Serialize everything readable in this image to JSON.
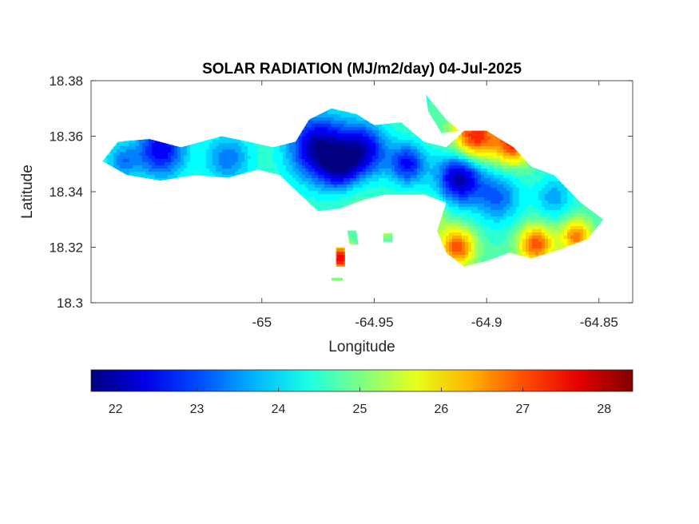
{
  "title": "SOLAR RADIATION (MJ/m2/day) 04-Jul-2025",
  "map": {
    "xlabel": "Longitude",
    "ylabel": "Latitude",
    "xlim": [
      -65.076,
      -64.835
    ],
    "ylim": [
      18.3,
      18.38
    ],
    "xticks": [
      {
        "value": -65,
        "label": "-65"
      },
      {
        "value": -64.95,
        "label": "-64.95"
      },
      {
        "value": -64.9,
        "label": "-64.9"
      },
      {
        "value": -64.85,
        "label": "-64.85"
      }
    ],
    "yticks": [
      {
        "value": 18.38,
        "label": "18.38"
      },
      {
        "value": 18.36,
        "label": "18.36"
      },
      {
        "value": 18.34,
        "label": "18.34"
      },
      {
        "value": 18.32,
        "label": "18.32"
      },
      {
        "value": 18.3,
        "label": "18.3"
      }
    ],
    "island_outline": [
      [
        -65.071,
        18.351
      ],
      [
        -65.064,
        18.358
      ],
      [
        -65.05,
        18.359
      ],
      [
        -65.036,
        18.356
      ],
      [
        -65.018,
        18.36
      ],
      [
        -65.006,
        18.358
      ],
      [
        -64.995,
        18.356
      ],
      [
        -64.985,
        18.358
      ],
      [
        -64.979,
        18.366
      ],
      [
        -64.969,
        18.37
      ],
      [
        -64.958,
        18.368
      ],
      [
        -64.95,
        18.364
      ],
      [
        -64.938,
        18.365
      ],
      [
        -64.928,
        18.358
      ],
      [
        -64.918,
        18.356
      ],
      [
        -64.91,
        18.362
      ],
      [
        -64.9,
        18.362
      ],
      [
        -64.888,
        18.356
      ],
      [
        -64.88,
        18.349
      ],
      [
        -64.87,
        18.346
      ],
      [
        -64.858,
        18.336
      ],
      [
        -64.848,
        18.33
      ],
      [
        -64.855,
        18.323
      ],
      [
        -64.868,
        18.319
      ],
      [
        -64.88,
        18.316
      ],
      [
        -64.89,
        18.318
      ],
      [
        -64.9,
        18.315
      ],
      [
        -64.91,
        18.313
      ],
      [
        -64.918,
        18.318
      ],
      [
        -64.922,
        18.326
      ],
      [
        -64.918,
        18.336
      ],
      [
        -64.928,
        18.339
      ],
      [
        -64.945,
        18.339
      ],
      [
        -64.955,
        18.337
      ],
      [
        -64.965,
        18.334
      ],
      [
        -64.975,
        18.333
      ],
      [
        -64.983,
        18.339
      ],
      [
        -64.992,
        18.346
      ],
      [
        -65.002,
        18.348
      ],
      [
        -65.015,
        18.345
      ],
      [
        -65.03,
        18.346
      ],
      [
        -65.045,
        18.344
      ],
      [
        -65.06,
        18.346
      ]
    ],
    "inlet_outline": [
      [
        -64.927,
        18.375
      ],
      [
        -64.918,
        18.366
      ],
      [
        -64.912,
        18.362
      ],
      [
        -64.92,
        18.361
      ],
      [
        -64.926,
        18.369
      ]
    ],
    "islet_outlines": [
      [
        [
          -64.962,
          18.326
        ],
        [
          -64.958,
          18.326
        ],
        [
          -64.957,
          18.321
        ],
        [
          -64.961,
          18.321
        ]
      ],
      [
        [
          -64.946,
          18.325
        ],
        [
          -64.942,
          18.325
        ],
        [
          -64.942,
          18.322
        ],
        [
          -64.946,
          18.322
        ]
      ],
      [
        [
          -64.967,
          18.32
        ],
        [
          -64.963,
          18.32
        ],
        [
          -64.963,
          18.313
        ],
        [
          -64.967,
          18.313
        ]
      ],
      [
        [
          -64.969,
          18.309
        ],
        [
          -64.964,
          18.309
        ],
        [
          -64.964,
          18.308
        ],
        [
          -64.969,
          18.308
        ]
      ]
    ],
    "field_base_value": 24.6,
    "field_features": [
      {
        "lon": -65.045,
        "lat": 18.355,
        "value": 22.4,
        "radius": 0.011
      },
      {
        "lon": -65.015,
        "lat": 18.352,
        "value": 23.3,
        "radius": 0.01
      },
      {
        "lon": -64.975,
        "lat": 18.356,
        "value": 21.9,
        "radius": 0.013
      },
      {
        "lon": -64.955,
        "lat": 18.355,
        "value": 22.3,
        "radius": 0.011
      },
      {
        "lon": -64.965,
        "lat": 18.347,
        "value": 23.0,
        "radius": 0.009
      },
      {
        "lon": -64.935,
        "lat": 18.35,
        "value": 22.6,
        "radius": 0.008
      },
      {
        "lon": -64.912,
        "lat": 18.345,
        "value": 21.9,
        "radius": 0.01
      },
      {
        "lon": -64.895,
        "lat": 18.338,
        "value": 23.2,
        "radius": 0.01
      },
      {
        "lon": -64.87,
        "lat": 18.338,
        "value": 23.6,
        "radius": 0.008
      },
      {
        "lon": -64.905,
        "lat": 18.36,
        "value": 27.4,
        "radius": 0.01
      },
      {
        "lon": -64.888,
        "lat": 18.357,
        "value": 27.1,
        "radius": 0.008
      },
      {
        "lon": -64.913,
        "lat": 18.32,
        "value": 27.0,
        "radius": 0.008
      },
      {
        "lon": -64.878,
        "lat": 18.321,
        "value": 27.0,
        "radius": 0.008
      },
      {
        "lon": -64.86,
        "lat": 18.324,
        "value": 26.7,
        "radius": 0.007
      },
      {
        "lon": -64.925,
        "lat": 18.331,
        "value": 25.6,
        "radius": 0.007
      },
      {
        "lon": -64.96,
        "lat": 18.34,
        "value": 25.0,
        "radius": 0.01
      },
      {
        "lon": -65.04,
        "lat": 18.346,
        "value": 24.6,
        "radius": 0.006
      },
      {
        "lon": -65.062,
        "lat": 18.351,
        "value": 23.4,
        "radius": 0.007
      },
      {
        "lon": -64.965,
        "lat": 18.316,
        "value": 27.5,
        "radius": 0.006
      },
      {
        "lon": -64.945,
        "lat": 18.326,
        "value": 25.3,
        "radius": 0.004
      }
    ]
  },
  "colorbar": {
    "colormap": "jet",
    "range": [
      21.7,
      28.35
    ],
    "ticks": [
      {
        "value": 22,
        "label": "22"
      },
      {
        "value": 23,
        "label": "23"
      },
      {
        "value": 24,
        "label": "24"
      },
      {
        "value": 25,
        "label": "25"
      },
      {
        "value": 26,
        "label": "26"
      },
      {
        "value": 27,
        "label": "27"
      },
      {
        "value": 28,
        "label": "28"
      }
    ]
  }
}
